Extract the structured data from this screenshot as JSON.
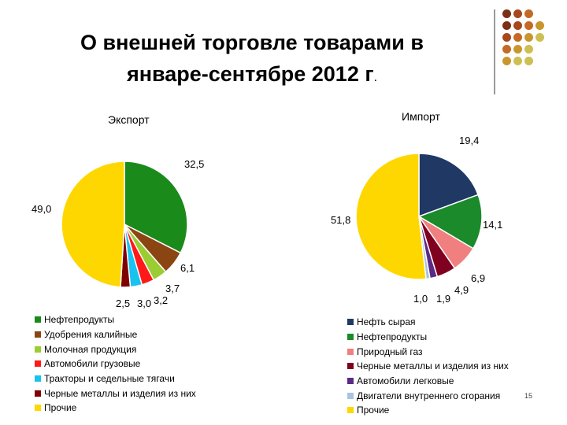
{
  "title": {
    "line1": "О внешней торговле товарами в",
    "line2": "январе-сентябре 2012 г",
    "dot": "."
  },
  "colors": {
    "accent_line": "#9a9a9a",
    "decor_dots": [
      "#7b2f14",
      "#a6471c",
      "#c46a24",
      "#c9962c",
      "#cdbf52"
    ]
  },
  "page_number": "15",
  "chart_data": [
    {
      "type": "pie",
      "title": "Экспорт",
      "slices": [
        {
          "name": "Нефтепродукты",
          "value": 32.5,
          "label": "32,5",
          "color": "#1a8a1a"
        },
        {
          "name": "Удобрения калийные",
          "value": 6.1,
          "label": "6,1",
          "color": "#8b4513"
        },
        {
          "name": "Молочная продукция",
          "value": 3.7,
          "label": "3,7",
          "color": "#9acd32"
        },
        {
          "name": "Автомобили грузовые",
          "value": 3.2,
          "label": "3,2",
          "color": "#ff1a1a"
        },
        {
          "name": "Тракторы и седельные тягачи",
          "value": 3.0,
          "label": "3,0",
          "color": "#19c3f0"
        },
        {
          "name": "Черные металлы и изделия из них",
          "value": 2.5,
          "label": "2,5",
          "color": "#800000"
        },
        {
          "name": "Прочие",
          "value": 49.0,
          "label": "49,0",
          "color": "#ffd700"
        }
      ]
    },
    {
      "type": "pie",
      "title": "Импорт",
      "slices": [
        {
          "name": "Нефть сырая",
          "value": 19.4,
          "label": "19,4",
          "color": "#1f3864"
        },
        {
          "name": "Нефтепродукты",
          "value": 14.1,
          "label": "14,1",
          "color": "#1a8a2a"
        },
        {
          "name": "Природный газ",
          "value": 6.9,
          "label": "6,9",
          "color": "#f08080"
        },
        {
          "name": "Черные металлы и изделия из них",
          "value": 4.9,
          "label": "4,9",
          "color": "#800020"
        },
        {
          "name": "Автомобили легковые",
          "value": 1.9,
          "label": "1,9",
          "color": "#5b2a86"
        },
        {
          "name": "Двигатели внутреннего сгорания",
          "value": 1.0,
          "label": "1,0",
          "color": "#a8c4e0"
        },
        {
          "name": "Прочие",
          "value": 51.8,
          "label": "51,8",
          "color": "#ffd700"
        }
      ]
    }
  ]
}
